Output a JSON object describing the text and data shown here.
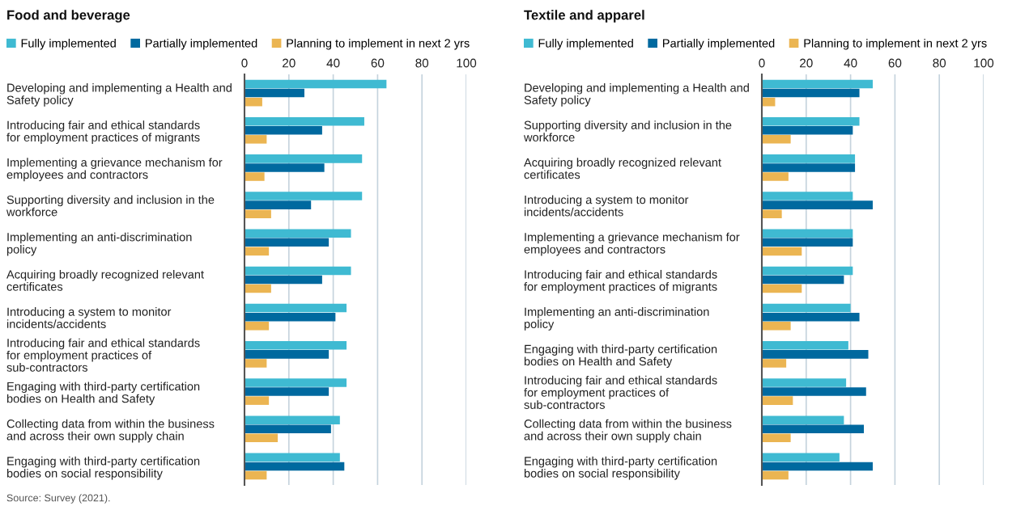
{
  "chart_data": [
    {
      "type": "bar",
      "orientation": "horizontal",
      "title": "Food and beverage",
      "categories": [
        "Developing and implementing a Health and Safety policy",
        "Introducing fair and ethical standards for employment practices of migrants",
        "Implementing a grievance mechanism for employees and contractors",
        "Supporting diversity and inclusion in the workforce",
        "Implementing an anti-discrimination policy",
        "Acquiring broadly recognized relevant certificates",
        "Introducing a system to monitor incidents/accidents",
        "Introducing fair and ethical standards for employment practices of sub-contractors",
        "Engaging with third-party certification bodies on Health and Safety",
        "Collecting data from within the business and across their own supply chain",
        "Engaging with third-party certification bodies on social responsibility"
      ],
      "series": [
        {
          "name": "Fully implemented",
          "color": "#3fbad2",
          "values": [
            64,
            54,
            53,
            53,
            48,
            48,
            46,
            46,
            46,
            43,
            43
          ]
        },
        {
          "name": "Partially implemented",
          "color": "#00699f",
          "values": [
            27,
            35,
            36,
            30,
            38,
            35,
            41,
            38,
            38,
            39,
            45
          ]
        },
        {
          "name": "Planning to implement in next 2 yrs",
          "color": "#ebb552",
          "values": [
            8,
            10,
            9,
            12,
            11,
            12,
            11,
            10,
            11,
            15,
            10
          ]
        }
      ],
      "xlim": [
        0,
        100
      ],
      "xticks": [
        0,
        20,
        40,
        60,
        80,
        100
      ],
      "grid": "x",
      "legend": "top left",
      "annotations": [
        "Source: Survey (2021)."
      ]
    },
    {
      "type": "bar",
      "orientation": "horizontal",
      "title": "Textile and apparel",
      "categories": [
        "Developing and implementing a Health and Safety policy",
        "Supporting diversity and inclusion in the workforce",
        "Acquiring broadly recognized relevant certificates",
        "Introducing a system to monitor incidents/accidents",
        "Implementing a grievance mechanism for employees and contractors",
        "Introducing fair and ethical standards for employment practices of migrants",
        "Implementing an anti-discrimination policy",
        "Engaging with third-party certification bodies on Health and Safety",
        "Introducing fair and ethical standards for employment practices of sub-contractors",
        "Collecting data from within the business and across their own supply chain",
        "Engaging with third-party certification bodies on social responsibility"
      ],
      "series": [
        {
          "name": "Fully implemented",
          "color": "#3fbad2",
          "values": [
            50,
            44,
            42,
            41,
            41,
            41,
            40,
            39,
            38,
            37,
            35
          ]
        },
        {
          "name": "Partially implemented",
          "color": "#00699f",
          "values": [
            44,
            41,
            42,
            50,
            41,
            37,
            44,
            48,
            47,
            46,
            50
          ]
        },
        {
          "name": "Planning to implement in next 2 yrs",
          "color": "#ebb552",
          "values": [
            6,
            13,
            12,
            9,
            18,
            18,
            13,
            11,
            14,
            13,
            12
          ]
        }
      ],
      "xlim": [
        0,
        100
      ],
      "xticks": [
        0,
        20,
        40,
        60,
        80,
        100
      ],
      "grid": "x",
      "legend": "top left"
    }
  ]
}
